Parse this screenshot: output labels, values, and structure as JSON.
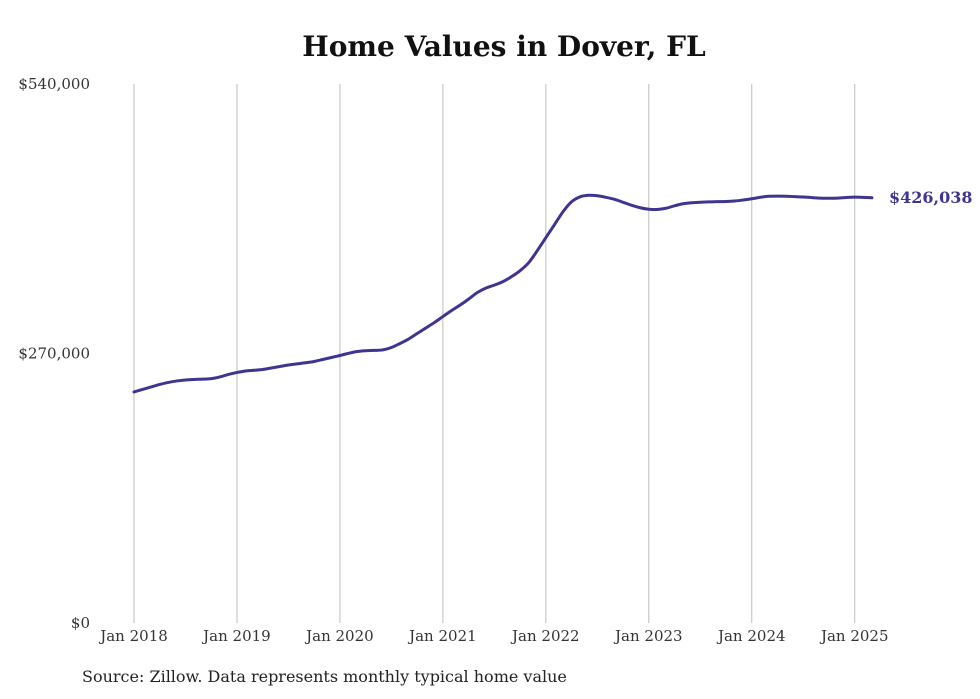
{
  "chart_data": {
    "type": "line",
    "title": "Home Values in Dover, FL",
    "xlabel": "",
    "ylabel": "",
    "ylim": [
      0,
      540000
    ],
    "y_ticks": [
      {
        "value": 0,
        "label": "$0"
      },
      {
        "value": 270000,
        "label": "$270,000"
      },
      {
        "value": 540000,
        "label": "$540,000"
      }
    ],
    "x_ticks": [
      "Jan 2018",
      "Jan 2019",
      "Jan 2020",
      "Jan 2021",
      "Jan 2022",
      "Jan 2023",
      "Jan 2024",
      "Jan 2025"
    ],
    "grid": "vertical",
    "line_color": "#3d3590",
    "series": [
      {
        "x": [
          "2018-01",
          "2018-02",
          "2018-03",
          "2018-04",
          "2018-05",
          "2018-06",
          "2018-07",
          "2018-08",
          "2018-09",
          "2018-10",
          "2018-11",
          "2018-12",
          "2019-01",
          "2019-02",
          "2019-03",
          "2019-04",
          "2019-05",
          "2019-06",
          "2019-07",
          "2019-08",
          "2019-09",
          "2019-10",
          "2019-11",
          "2019-12",
          "2020-01",
          "2020-02",
          "2020-03",
          "2020-04",
          "2020-05",
          "2020-06",
          "2020-07",
          "2020-08",
          "2020-09",
          "2020-10",
          "2020-11",
          "2020-12",
          "2021-01",
          "2021-02",
          "2021-03",
          "2021-04",
          "2021-05",
          "2021-06",
          "2021-07",
          "2021-08",
          "2021-09",
          "2021-10",
          "2021-11",
          "2021-12",
          "2022-01",
          "2022-02",
          "2022-03",
          "2022-04",
          "2022-05",
          "2022-06",
          "2022-07",
          "2022-08",
          "2022-09",
          "2022-10",
          "2022-11",
          "2022-12",
          "2023-01",
          "2023-02",
          "2023-03",
          "2023-04",
          "2023-05",
          "2023-06",
          "2023-07",
          "2023-08",
          "2023-09",
          "2023-10",
          "2023-11",
          "2023-12",
          "2024-01",
          "2024-02",
          "2024-03",
          "2024-04",
          "2024-05",
          "2024-06",
          "2024-07",
          "2024-08",
          "2024-09",
          "2024-10",
          "2024-11",
          "2024-12",
          "2025-01",
          "2025-02",
          "2025-03"
        ],
        "values": [
          231500,
          234000,
          236500,
          239000,
          241000,
          242500,
          243500,
          244000,
          244300,
          244800,
          246500,
          249000,
          251000,
          252500,
          253200,
          254000,
          255500,
          257000,
          258500,
          259600,
          260700,
          262000,
          264000,
          266000,
          268000,
          270200,
          272000,
          272800,
          273100,
          273600,
          276000,
          280000,
          284500,
          290000,
          295500,
          301000,
          307000,
          313000,
          318500,
          324500,
          331000,
          335500,
          338500,
          342000,
          347000,
          353000,
          361000,
          373000,
          386000,
          399000,
          412000,
          422000,
          427000,
          428500,
          428000,
          426500,
          424500,
          421500,
          418500,
          416000,
          414500,
          414300,
          415500,
          418000,
          420000,
          421000,
          421500,
          421900,
          422100,
          422300,
          422800,
          423800,
          425000,
          426500,
          427500,
          427700,
          427600,
          427200,
          426800,
          426200,
          425700,
          425500,
          425700,
          426300,
          426700,
          426400,
          426038
        ]
      }
    ],
    "end_label": "$426,038",
    "note": "Source: Zillow. Data represents monthly typical home value"
  }
}
